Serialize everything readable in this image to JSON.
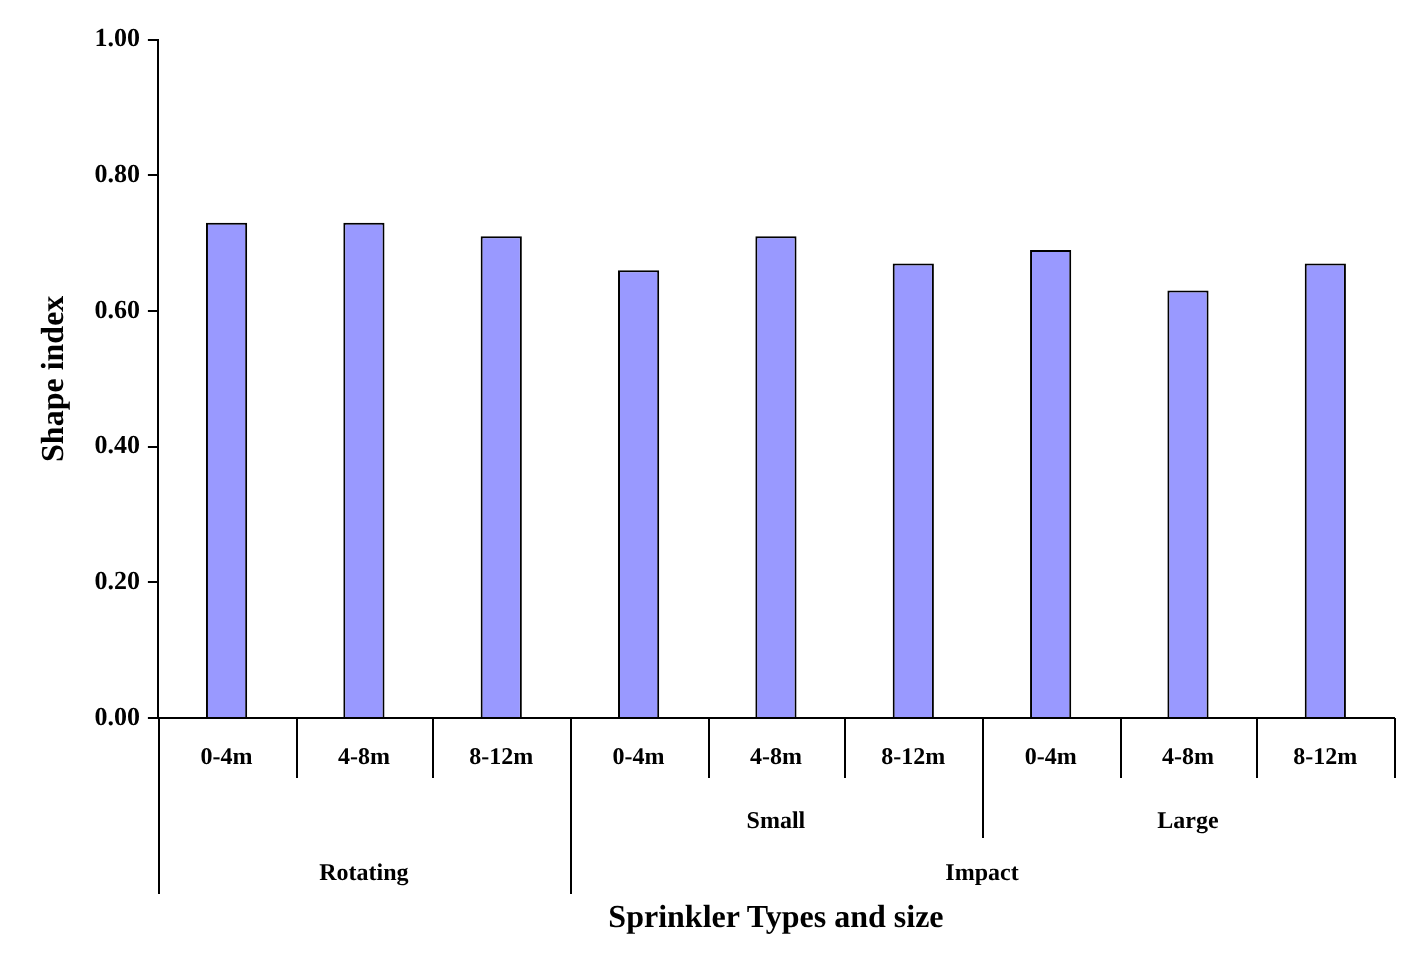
{
  "chart_data": {
    "type": "bar",
    "xlabel": "Sprinkler Types and size",
    "ylabel": "Shape index",
    "categories": [
      "0-4m",
      "4-8m",
      "8-12m",
      "0-4m",
      "4-8m",
      "8-12m",
      "0-4m",
      "4-8m",
      "8-12m"
    ],
    "values": [
      0.73,
      0.73,
      0.71,
      0.66,
      0.71,
      0.67,
      0.69,
      0.63,
      0.67
    ],
    "color": "#9999ff",
    "ylim": [
      0,
      1
    ],
    "yticks": [
      {
        "value": 0,
        "label": "0.00"
      },
      {
        "value": 0.2,
        "label": "0.20"
      },
      {
        "value": 0.4,
        "label": "0.40"
      },
      {
        "value": 0.6,
        "label": "0.60"
      },
      {
        "value": 0.8,
        "label": "0.80"
      },
      {
        "value": 1,
        "label": "1.00"
      }
    ],
    "grid": false,
    "legend": false,
    "annotations": [
      "Small",
      "Large",
      "Rotating",
      "Impact"
    ]
  }
}
